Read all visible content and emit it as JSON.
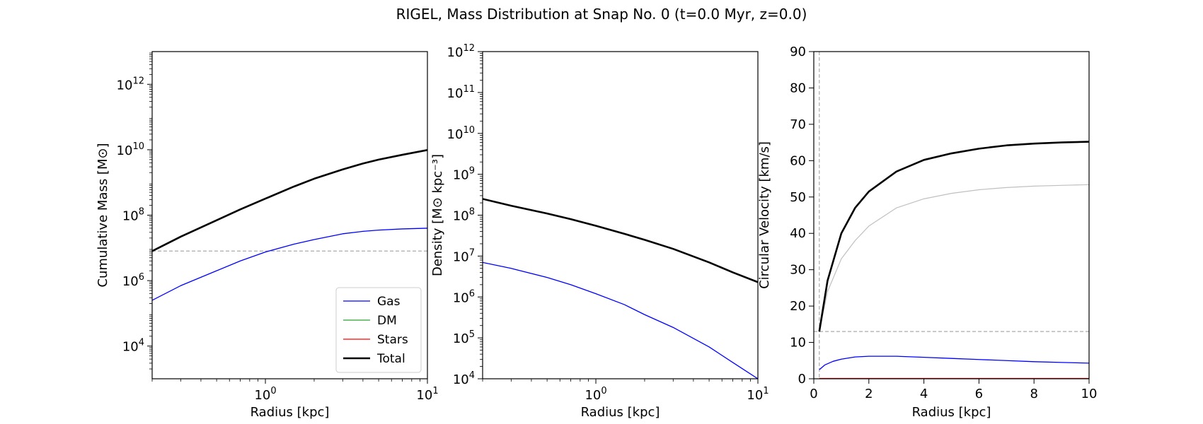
{
  "title": "RIGEL, Mass Distribution at Snap No. 0 (t=0.0 Myr, z=0.0)",
  "chart_data": [
    {
      "type": "line",
      "xlabel": "Radius [kpc]",
      "ylabel": "Cumulative Mass [M⊙]",
      "xscale": "log",
      "yscale": "log",
      "xlim": [
        0.2,
        10
      ],
      "ylim": [
        1000,
        10000000000000
      ],
      "xticks": [
        {
          "value": 1,
          "base": "10",
          "exp": "0"
        },
        {
          "value": 10,
          "base": "10",
          "exp": "1"
        }
      ],
      "yticks": [
        {
          "value": 10000,
          "base": "10",
          "exp": "4"
        },
        {
          "value": 1000000,
          "base": "10",
          "exp": "6"
        },
        {
          "value": 100000000,
          "base": "10",
          "exp": "8"
        },
        {
          "value": 10000000000,
          "base": "10",
          "exp": "10"
        },
        {
          "value": 1000000000000,
          "base": "10",
          "exp": "12"
        }
      ],
      "reference_lines": [
        {
          "orientation": "horizontal",
          "value": 8000000,
          "color": "#aaaaaa"
        }
      ],
      "legend": {
        "placement": "lower-right",
        "entries": [
          {
            "label": "Gas",
            "color": "#0000ff"
          },
          {
            "label": "DM",
            "color": "#2ca02c"
          },
          {
            "label": "Stars",
            "color": "#ff0000"
          },
          {
            "label": "Total",
            "color": "#000000"
          }
        ]
      },
      "series": [
        {
          "name": "Gas",
          "color": "#0000ff",
          "width": 1.3,
          "x": [
            0.2,
            0.3,
            0.5,
            0.7,
            1.0,
            1.5,
            2.0,
            3.0,
            4.0,
            5.0,
            7.0,
            10.0
          ],
          "y": [
            250000,
            700000,
            2000000,
            4000000,
            7500000,
            13000000,
            18000000,
            27000000,
            32000000,
            35000000,
            38000000,
            40000000
          ]
        },
        {
          "name": "Total",
          "color": "#000000",
          "width": 2.6,
          "x": [
            0.2,
            0.3,
            0.5,
            0.7,
            1.0,
            1.5,
            2.0,
            3.0,
            4.0,
            5.0,
            7.0,
            10.0
          ],
          "y": [
            8000000,
            22000000,
            70000000,
            150000000,
            320000000,
            750000000,
            1300000000,
            2500000000,
            3800000000,
            5000000000,
            7000000000,
            9800000000
          ]
        }
      ]
    },
    {
      "type": "line",
      "xlabel": "Radius [kpc]",
      "ylabel": "Density [M⊙ kpc⁻³]",
      "xscale": "log",
      "yscale": "log",
      "xlim": [
        0.2,
        10
      ],
      "ylim": [
        10000,
        1000000000000
      ],
      "xticks": [
        {
          "value": 1,
          "base": "10",
          "exp": "0"
        },
        {
          "value": 10,
          "base": "10",
          "exp": "1"
        }
      ],
      "yticks": [
        {
          "value": 10000,
          "base": "10",
          "exp": "4"
        },
        {
          "value": 100000,
          "base": "10",
          "exp": "5"
        },
        {
          "value": 1000000,
          "base": "10",
          "exp": "6"
        },
        {
          "value": 10000000,
          "base": "10",
          "exp": "7"
        },
        {
          "value": 100000000,
          "base": "10",
          "exp": "8"
        },
        {
          "value": 1000000000,
          "base": "10",
          "exp": "9"
        },
        {
          "value": 10000000000,
          "base": "10",
          "exp": "10"
        },
        {
          "value": 100000000000,
          "base": "10",
          "exp": "11"
        },
        {
          "value": 1000000000000,
          "base": "10",
          "exp": "12"
        }
      ],
      "series": [
        {
          "name": "Gas",
          "color": "#0000ff",
          "width": 1.3,
          "x": [
            0.2,
            0.3,
            0.5,
            0.7,
            1.0,
            1.5,
            2.0,
            3.0,
            5.0,
            7.0,
            10.0
          ],
          "y": [
            7000000,
            5000000,
            3000000,
            2000000,
            1200000,
            650000,
            370000,
            180000,
            60000,
            25000,
            10000
          ]
        },
        {
          "name": "Total",
          "color": "#000000",
          "width": 2.6,
          "x": [
            0.2,
            0.3,
            0.5,
            0.7,
            1.0,
            1.5,
            2.0,
            3.0,
            5.0,
            7.0,
            10.0
          ],
          "y": [
            250000000,
            170000000,
            110000000,
            80000000,
            55000000,
            35000000,
            25000000,
            15000000,
            7000000,
            4000000,
            2300000
          ]
        }
      ]
    },
    {
      "type": "line",
      "xlabel": "Radius [kpc]",
      "ylabel": "Circular Velocity [km/s]",
      "xscale": "linear",
      "yscale": "linear",
      "xlim": [
        0,
        10
      ],
      "ylim": [
        0,
        90
      ],
      "xticks": [
        {
          "value": 0,
          "label": "0"
        },
        {
          "value": 2,
          "label": "2"
        },
        {
          "value": 4,
          "label": "4"
        },
        {
          "value": 6,
          "label": "6"
        },
        {
          "value": 8,
          "label": "8"
        },
        {
          "value": 10,
          "label": "10"
        }
      ],
      "yticks": [
        {
          "value": 0,
          "label": "0"
        },
        {
          "value": 10,
          "label": "10"
        },
        {
          "value": 20,
          "label": "20"
        },
        {
          "value": 30,
          "label": "30"
        },
        {
          "value": 40,
          "label": "40"
        },
        {
          "value": 50,
          "label": "50"
        },
        {
          "value": 60,
          "label": "60"
        },
        {
          "value": 70,
          "label": "70"
        },
        {
          "value": 80,
          "label": "80"
        },
        {
          "value": 90,
          "label": "90"
        }
      ],
      "reference_lines": [
        {
          "orientation": "horizontal",
          "value": 13,
          "color": "#aaaaaa"
        },
        {
          "orientation": "vertical",
          "value": 0.2,
          "color": "#aaaaaa"
        }
      ],
      "series": [
        {
          "name": "",
          "color": "#c0c0c0",
          "width": 1.2,
          "x": [
            0.2,
            0.5,
            1.0,
            1.5,
            2.0,
            3.0,
            4.0,
            5.0,
            6.0,
            7.0,
            8.0,
            9.0,
            10.0
          ],
          "y": [
            13,
            24,
            33,
            38,
            42,
            47,
            49.5,
            51,
            52,
            52.6,
            53,
            53.2,
            53.4
          ]
        },
        {
          "name": "Stars",
          "color": "#ff0000",
          "width": 1.3,
          "x": [
            0.2,
            10.0
          ],
          "y": [
            0.1,
            0.1
          ]
        },
        {
          "name": "Gas",
          "color": "#0000ff",
          "width": 1.3,
          "x": [
            0.2,
            0.4,
            0.7,
            1.0,
            1.5,
            2.0,
            3.0,
            4.0,
            5.0,
            6.0,
            7.0,
            8.0,
            9.0,
            10.0
          ],
          "y": [
            2.5,
            3.8,
            4.8,
            5.4,
            6.0,
            6.2,
            6.2,
            5.9,
            5.6,
            5.3,
            5.0,
            4.7,
            4.5,
            4.3
          ]
        },
        {
          "name": "DM",
          "color": "#2ca02c",
          "width": 1.3,
          "x": [
            0.2,
            0.5,
            1.0,
            1.5,
            2.0,
            3.0,
            4.0,
            5.0,
            6.0,
            7.0,
            8.0,
            9.0,
            10.0
          ],
          "y": [
            13,
            27,
            40,
            47,
            51.5,
            57,
            60.2,
            62,
            63.3,
            64.2,
            64.7,
            65,
            65.2
          ]
        },
        {
          "name": "Total",
          "color": "#000000",
          "width": 2.6,
          "x": [
            0.2,
            0.5,
            1.0,
            1.5,
            2.0,
            3.0,
            4.0,
            5.0,
            6.0,
            7.0,
            8.0,
            9.0,
            10.0
          ],
          "y": [
            13,
            27,
            40,
            47,
            51.5,
            57,
            60.2,
            62,
            63.3,
            64.2,
            64.7,
            65,
            65.2
          ]
        }
      ]
    }
  ]
}
